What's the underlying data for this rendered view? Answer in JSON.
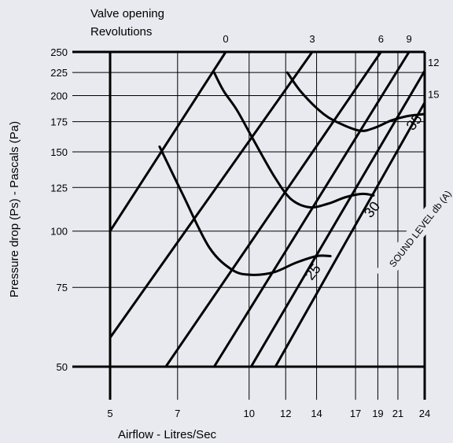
{
  "chart_data": {
    "type": "line",
    "title_lines": [
      "Valve opening",
      "Revolutions"
    ],
    "xlabel": "Airflow - Litres/Sec",
    "ylabel": "Pressure drop (Ps) - Pascals (Pa)",
    "x_scale": "log",
    "y_scale": "log",
    "xlim": [
      5,
      24
    ],
    "ylim": [
      50,
      250
    ],
    "x_ticks": [
      5,
      7,
      10,
      12,
      14,
      17,
      19,
      21,
      24
    ],
    "y_ticks": [
      50,
      75,
      100,
      125,
      150,
      175,
      200,
      225,
      250
    ],
    "valve_labels": [
      {
        "text": "0",
        "x": 8.9,
        "y": 250
      },
      {
        "text": "3",
        "x": 13.7,
        "y": 250
      },
      {
        "text": "6",
        "x": 19.3,
        "y": 250
      },
      {
        "text": "9",
        "x": 22.2,
        "y": 250
      },
      {
        "text": "12",
        "x": 24,
        "y": 227
      },
      {
        "text": "15",
        "x": 24,
        "y": 193
      }
    ],
    "valve_lines": [
      {
        "name": "0",
        "points": [
          [
            5,
            100
          ],
          [
            8.9,
            250
          ]
        ]
      },
      {
        "name": "3",
        "points": [
          [
            5,
            58
          ],
          [
            13.7,
            250
          ]
        ]
      },
      {
        "name": "6",
        "points": [
          [
            6.6,
            50
          ],
          [
            19.3,
            250
          ]
        ]
      },
      {
        "name": "9",
        "points": [
          [
            8.4,
            50
          ],
          [
            22.2,
            250
          ]
        ]
      },
      {
        "name": "12",
        "points": [
          [
            10.1,
            50
          ],
          [
            24,
            227
          ]
        ]
      },
      {
        "name": "15",
        "points": [
          [
            11.4,
            50
          ],
          [
            24,
            193
          ]
        ]
      }
    ],
    "sound_label": "SOUND LEVEL db (A)",
    "sound_curves": [
      {
        "name": "25",
        "label_at": [
          14.0,
          80
        ],
        "points": [
          [
            6.4,
            154
          ],
          [
            7.2,
            120
          ],
          [
            8.2,
            92
          ],
          [
            9.2,
            82
          ],
          [
            10.1,
            80
          ],
          [
            11.3,
            81
          ],
          [
            12.6,
            85
          ],
          [
            14.0,
            88
          ],
          [
            15.0,
            88
          ]
        ]
      },
      {
        "name": "30",
        "label_at": [
          18.8,
          110
        ],
        "points": [
          [
            8.4,
            225
          ],
          [
            8.8,
            205
          ],
          [
            9.4,
            186
          ],
          [
            10.2,
            160
          ],
          [
            11.3,
            133
          ],
          [
            12.3,
            118
          ],
          [
            13.5,
            113
          ],
          [
            14.8,
            115
          ],
          [
            16.2,
            119
          ],
          [
            17.6,
            121
          ],
          [
            18.6,
            120
          ]
        ]
      },
      {
        "name": "35",
        "label_at": [
          23.2,
          172
        ],
        "points": [
          [
            12.1,
            225
          ],
          [
            13.0,
            203
          ],
          [
            14.5,
            182
          ],
          [
            16.0,
            172
          ],
          [
            17.5,
            167
          ],
          [
            18.8,
            170
          ],
          [
            20.3,
            176
          ],
          [
            22.0,
            180
          ],
          [
            24.0,
            182
          ]
        ]
      }
    ]
  }
}
